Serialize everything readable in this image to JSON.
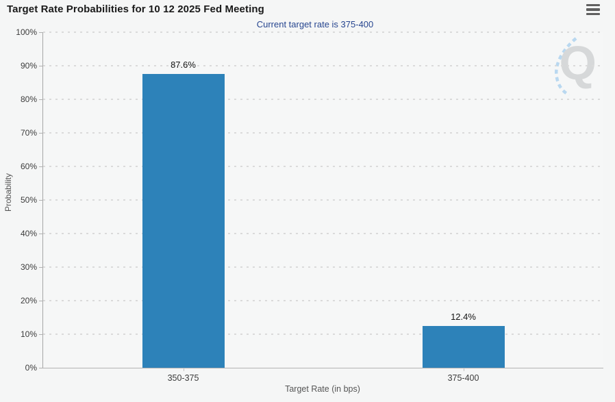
{
  "header": {
    "title": "Target Rate Probabilities for 10 12 2025 Fed Meeting",
    "menu_icon": "hamburger-menu-icon"
  },
  "chart": {
    "subtitle": "Current target rate is 375-400",
    "watermark_letter": "Q"
  },
  "colors": {
    "bar": "#2d82b9",
    "subtitle_text": "#26458f",
    "background": "#f5f6f6",
    "watermark_gray": "#d6d8d9",
    "watermark_blue": "#b9d8f0"
  },
  "chart_data": {
    "type": "bar",
    "title": "Target Rate Probabilities for 10 12 2025 Fed Meeting",
    "subtitle": "Current target rate is 375-400",
    "categories": [
      "350-375",
      "375-400"
    ],
    "values": [
      87.6,
      12.4
    ],
    "value_labels": [
      "87.6%",
      "12.4%"
    ],
    "xlabel": "Target Rate (in bps)",
    "ylabel": "Probability",
    "ylim": [
      0,
      100
    ],
    "y_tick_step": 10,
    "y_ticks": [
      "0%",
      "10%",
      "20%",
      "30%",
      "40%",
      "50%",
      "60%",
      "70%",
      "80%",
      "90%",
      "100%"
    ],
    "grid": "horizontal-dotted",
    "legend": "none",
    "bar_color": "#2d82b9"
  }
}
